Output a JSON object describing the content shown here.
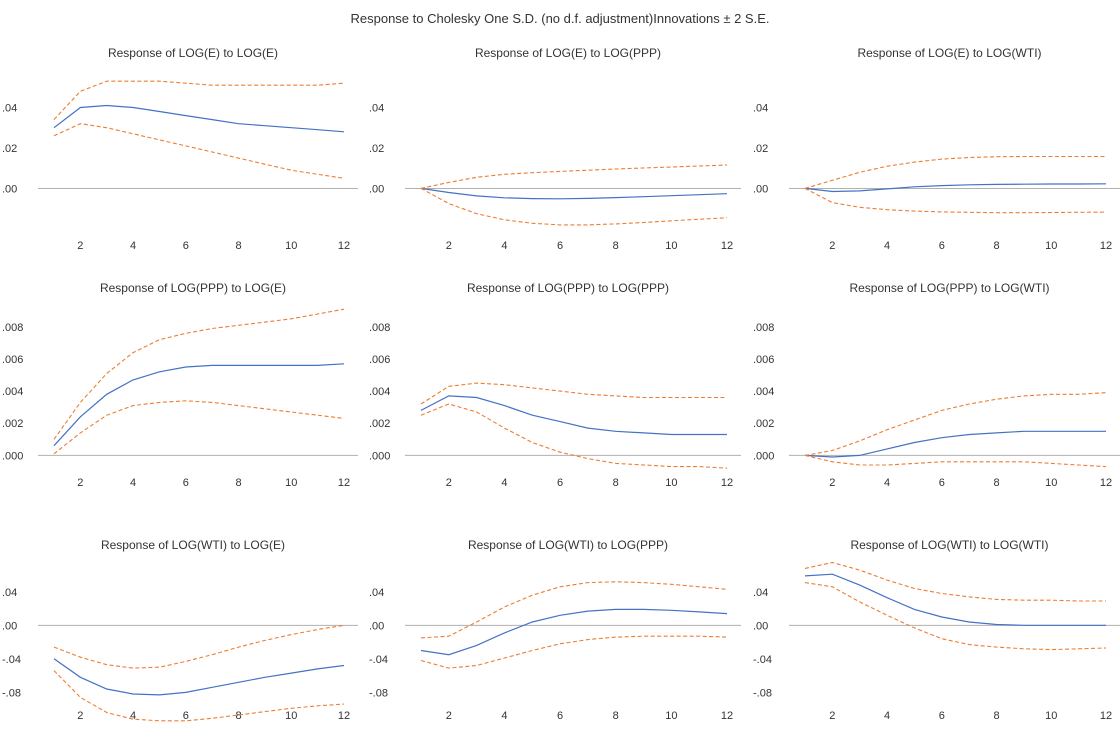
{
  "title": "Response to Cholesky One S.D. (no d.f. adjustment)Innovations ± 2 S.E.",
  "colors": {
    "response": "#4472c4",
    "bands": "#ed7d31",
    "zero": "#b0b0b0"
  },
  "chart_data": [
    {
      "type": "line",
      "title": "Response of LOG(E) to LOG(E)",
      "x": [
        1,
        2,
        3,
        4,
        5,
        6,
        7,
        8,
        9,
        10,
        11,
        12
      ],
      "xticks": [
        "2",
        "4",
        "6",
        "8",
        "10",
        "12"
      ],
      "yticks": [
        ".00",
        ".02",
        ".04"
      ],
      "yticks_values": [
        0,
        0.02,
        0.04
      ],
      "ylim": [
        -0.023,
        0.06
      ],
      "series": [
        {
          "role": "response",
          "values": [
            0.03,
            0.04,
            0.041,
            0.04,
            0.038,
            0.036,
            0.034,
            0.032,
            0.031,
            0.03,
            0.029,
            0.028
          ]
        },
        {
          "role": "upper",
          "values": [
            0.034,
            0.048,
            0.053,
            0.053,
            0.053,
            0.052,
            0.051,
            0.051,
            0.051,
            0.051,
            0.051,
            0.052
          ]
        },
        {
          "role": "lower",
          "values": [
            0.026,
            0.032,
            0.03,
            0.027,
            0.024,
            0.021,
            0.018,
            0.015,
            0.012,
            0.009,
            0.007,
            0.005
          ]
        }
      ]
    },
    {
      "type": "line",
      "title": "Response of LOG(E) to LOG(PPP)",
      "x": [
        1,
        2,
        3,
        4,
        5,
        6,
        7,
        8,
        9,
        10,
        11,
        12
      ],
      "xticks": [
        "2",
        "4",
        "6",
        "8",
        "10",
        "12"
      ],
      "yticks": [
        ".00",
        ".02",
        ".04"
      ],
      "yticks_values": [
        0,
        0.02,
        0.04
      ],
      "ylim": [
        -0.023,
        0.06
      ],
      "series": [
        {
          "role": "response",
          "values": [
            0.0,
            -0.002,
            -0.0037,
            -0.0046,
            -0.005,
            -0.0051,
            -0.0049,
            -0.0045,
            -0.0041,
            -0.0036,
            -0.0031,
            -0.0026
          ]
        },
        {
          "role": "upper",
          "values": [
            0.0,
            0.003,
            0.0055,
            0.007,
            0.0078,
            0.0084,
            0.009,
            0.0096,
            0.0101,
            0.0106,
            0.0111,
            0.0116
          ]
        },
        {
          "role": "lower",
          "values": [
            0.0,
            -0.0075,
            -0.0125,
            -0.0155,
            -0.0172,
            -0.018,
            -0.018,
            -0.0175,
            -0.0168,
            -0.016,
            -0.0152,
            -0.0145
          ]
        }
      ]
    },
    {
      "type": "line",
      "title": "Response of LOG(E) to LOG(WTI)",
      "x": [
        1,
        2,
        3,
        4,
        5,
        6,
        7,
        8,
        9,
        10,
        11,
        12
      ],
      "xticks": [
        "2",
        "4",
        "6",
        "8",
        "10",
        "12"
      ],
      "yticks": [
        ".00",
        ".02",
        ".04"
      ],
      "yticks_values": [
        0,
        0.02,
        0.04
      ],
      "ylim": [
        -0.023,
        0.06
      ],
      "series": [
        {
          "role": "response",
          "values": [
            0.0,
            -0.0015,
            -0.0012,
            -0.0002,
            0.0008,
            0.0014,
            0.0018,
            0.002,
            0.0021,
            0.0022,
            0.0022,
            0.0023
          ]
        },
        {
          "role": "upper",
          "values": [
            0.0,
            0.004,
            0.008,
            0.011,
            0.013,
            0.0145,
            0.0153,
            0.0157,
            0.0158,
            0.0158,
            0.0158,
            0.0158
          ]
        },
        {
          "role": "lower",
          "values": [
            0.0,
            -0.007,
            -0.0093,
            -0.0105,
            -0.0112,
            -0.0116,
            -0.0118,
            -0.012,
            -0.012,
            -0.0119,
            -0.0118,
            -0.0117
          ]
        }
      ]
    },
    {
      "type": "line",
      "title": "Response of LOG(PPP) to LOG(E)",
      "x": [
        1,
        2,
        3,
        4,
        5,
        6,
        7,
        8,
        9,
        10,
        11,
        12
      ],
      "xticks": [
        "2",
        "4",
        "6",
        "8",
        "10",
        "12"
      ],
      "yticks": [
        ".000",
        ".002",
        ".004",
        ".006",
        ".008"
      ],
      "yticks_values": [
        0,
        0.002,
        0.004,
        0.006,
        0.008
      ],
      "ylim": [
        -0.0006,
        0.0093
      ],
      "series": [
        {
          "role": "response",
          "values": [
            0.0006,
            0.0024,
            0.0038,
            0.0047,
            0.0052,
            0.0055,
            0.0056,
            0.0056,
            0.0056,
            0.0056,
            0.0056,
            0.0057
          ]
        },
        {
          "role": "upper",
          "values": [
            0.001,
            0.0033,
            0.0051,
            0.0064,
            0.0072,
            0.0076,
            0.0079,
            0.0081,
            0.0083,
            0.0085,
            0.0088,
            0.0091
          ]
        },
        {
          "role": "lower",
          "values": [
            0.0001,
            0.0014,
            0.0025,
            0.0031,
            0.0033,
            0.0034,
            0.0033,
            0.0031,
            0.0029,
            0.0027,
            0.0025,
            0.0023
          ]
        }
      ]
    },
    {
      "type": "line",
      "title": "Response of LOG(PPP) to LOG(PPP)",
      "x": [
        1,
        2,
        3,
        4,
        5,
        6,
        7,
        8,
        9,
        10,
        11,
        12
      ],
      "xticks": [
        "2",
        "4",
        "6",
        "8",
        "10",
        "12"
      ],
      "yticks": [
        ".000",
        ".002",
        ".004",
        ".006",
        ".008"
      ],
      "yticks_values": [
        0,
        0.002,
        0.004,
        0.006,
        0.008
      ],
      "ylim": [
        -0.0006,
        0.0093
      ],
      "series": [
        {
          "role": "response",
          "values": [
            0.0028,
            0.0037,
            0.0036,
            0.0031,
            0.0025,
            0.0021,
            0.0017,
            0.0015,
            0.0014,
            0.0013,
            0.0013,
            0.0013
          ]
        },
        {
          "role": "upper",
          "values": [
            0.0032,
            0.0043,
            0.0045,
            0.0044,
            0.0042,
            0.004,
            0.0038,
            0.0037,
            0.0036,
            0.0036,
            0.0036,
            0.0036
          ]
        },
        {
          "role": "lower",
          "values": [
            0.0025,
            0.0032,
            0.0027,
            0.0017,
            0.0008,
            0.0002,
            -0.0002,
            -0.0005,
            -0.0006,
            -0.0007,
            -0.0007,
            -0.0008
          ]
        }
      ]
    },
    {
      "type": "line",
      "title": "Response of LOG(PPP) to LOG(WTI)",
      "x": [
        1,
        2,
        3,
        4,
        5,
        6,
        7,
        8,
        9,
        10,
        11,
        12
      ],
      "xticks": [
        "2",
        "4",
        "6",
        "8",
        "10",
        "12"
      ],
      "yticks": [
        ".000",
        ".002",
        ".004",
        ".006",
        ".008"
      ],
      "yticks_values": [
        0,
        0.002,
        0.004,
        0.006,
        0.008
      ],
      "ylim": [
        -0.0006,
        0.0093
      ],
      "series": [
        {
          "role": "response",
          "values": [
            0.0,
            -0.0001,
            0.0,
            0.0004,
            0.0008,
            0.0011,
            0.0013,
            0.0014,
            0.0015,
            0.0015,
            0.0015,
            0.0015
          ]
        },
        {
          "role": "upper",
          "values": [
            0.0,
            0.0003,
            0.0009,
            0.0016,
            0.0022,
            0.0028,
            0.0032,
            0.0035,
            0.0037,
            0.0038,
            0.0038,
            0.0039
          ]
        },
        {
          "role": "lower",
          "values": [
            0.0,
            -0.0004,
            -0.0006,
            -0.0006,
            -0.0005,
            -0.0004,
            -0.0004,
            -0.0004,
            -0.0004,
            -0.0005,
            -0.0006,
            -0.0007
          ]
        }
      ]
    },
    {
      "type": "line",
      "title": "Response of LOG(WTI) to LOG(E)",
      "x": [
        1,
        2,
        3,
        4,
        5,
        6,
        7,
        8,
        9,
        10,
        11,
        12
      ],
      "xticks": [
        "2",
        "4",
        "6",
        "8",
        "10",
        "12"
      ],
      "yticks": [
        ".04",
        ".00",
        "-.04",
        "-.08"
      ],
      "yticks_values": [
        0.04,
        0,
        -0.04,
        -0.08
      ],
      "ylim": [
        -0.113,
        0.078
      ],
      "series": [
        {
          "role": "response",
          "values": [
            -0.04,
            -0.062,
            -0.076,
            -0.082,
            -0.083,
            -0.08,
            -0.074,
            -0.068,
            -0.062,
            -0.057,
            -0.052,
            -0.048
          ]
        },
        {
          "role": "upper",
          "values": [
            -0.026,
            -0.038,
            -0.047,
            -0.051,
            -0.05,
            -0.043,
            -0.035,
            -0.026,
            -0.018,
            -0.011,
            -0.005,
            0.0
          ]
        },
        {
          "role": "lower",
          "values": [
            -0.054,
            -0.086,
            -0.104,
            -0.112,
            -0.114,
            -0.114,
            -0.111,
            -0.107,
            -0.103,
            -0.099,
            -0.096,
            -0.094
          ]
        }
      ]
    },
    {
      "type": "line",
      "title": "Response of LOG(WTI) to LOG(PPP)",
      "x": [
        1,
        2,
        3,
        4,
        5,
        6,
        7,
        8,
        9,
        10,
        11,
        12
      ],
      "xticks": [
        "2",
        "4",
        "6",
        "8",
        "10",
        "12"
      ],
      "yticks": [
        ".04",
        ".00",
        "-.04",
        "-.08"
      ],
      "yticks_values": [
        0.04,
        0,
        -0.04,
        -0.08
      ],
      "ylim": [
        -0.113,
        0.078
      ],
      "series": [
        {
          "role": "response",
          "values": [
            -0.03,
            -0.035,
            -0.024,
            -0.009,
            0.004,
            0.012,
            0.017,
            0.019,
            0.019,
            0.018,
            0.016,
            0.014
          ]
        },
        {
          "role": "upper",
          "values": [
            -0.015,
            -0.013,
            0.004,
            0.022,
            0.036,
            0.046,
            0.051,
            0.052,
            0.051,
            0.049,
            0.046,
            0.043
          ]
        },
        {
          "role": "lower",
          "values": [
            -0.042,
            -0.051,
            -0.048,
            -0.039,
            -0.03,
            -0.022,
            -0.017,
            -0.014,
            -0.013,
            -0.013,
            -0.013,
            -0.014
          ]
        }
      ]
    },
    {
      "type": "line",
      "title": "Response of LOG(WTI) to LOG(WTI)",
      "x": [
        1,
        2,
        3,
        4,
        5,
        6,
        7,
        8,
        9,
        10,
        11,
        12
      ],
      "xticks": [
        "2",
        "4",
        "6",
        "8",
        "10",
        "12"
      ],
      "yticks": [
        ".04",
        ".00",
        "-.04",
        "-.08"
      ],
      "yticks_values": [
        0.04,
        0,
        -0.04,
        -0.08
      ],
      "ylim": [
        -0.113,
        0.078
      ],
      "series": [
        {
          "role": "response",
          "values": [
            0.059,
            0.061,
            0.048,
            0.033,
            0.019,
            0.01,
            0.004,
            0.001,
            0.0,
            0.0,
            0.0,
            0.0
          ]
        },
        {
          "role": "upper",
          "values": [
            0.068,
            0.075,
            0.066,
            0.054,
            0.044,
            0.038,
            0.034,
            0.031,
            0.03,
            0.03,
            0.029,
            0.029
          ]
        },
        {
          "role": "lower",
          "values": [
            0.051,
            0.046,
            0.028,
            0.012,
            -0.003,
            -0.016,
            -0.023,
            -0.026,
            -0.028,
            -0.029,
            -0.028,
            -0.027
          ]
        }
      ]
    }
  ]
}
